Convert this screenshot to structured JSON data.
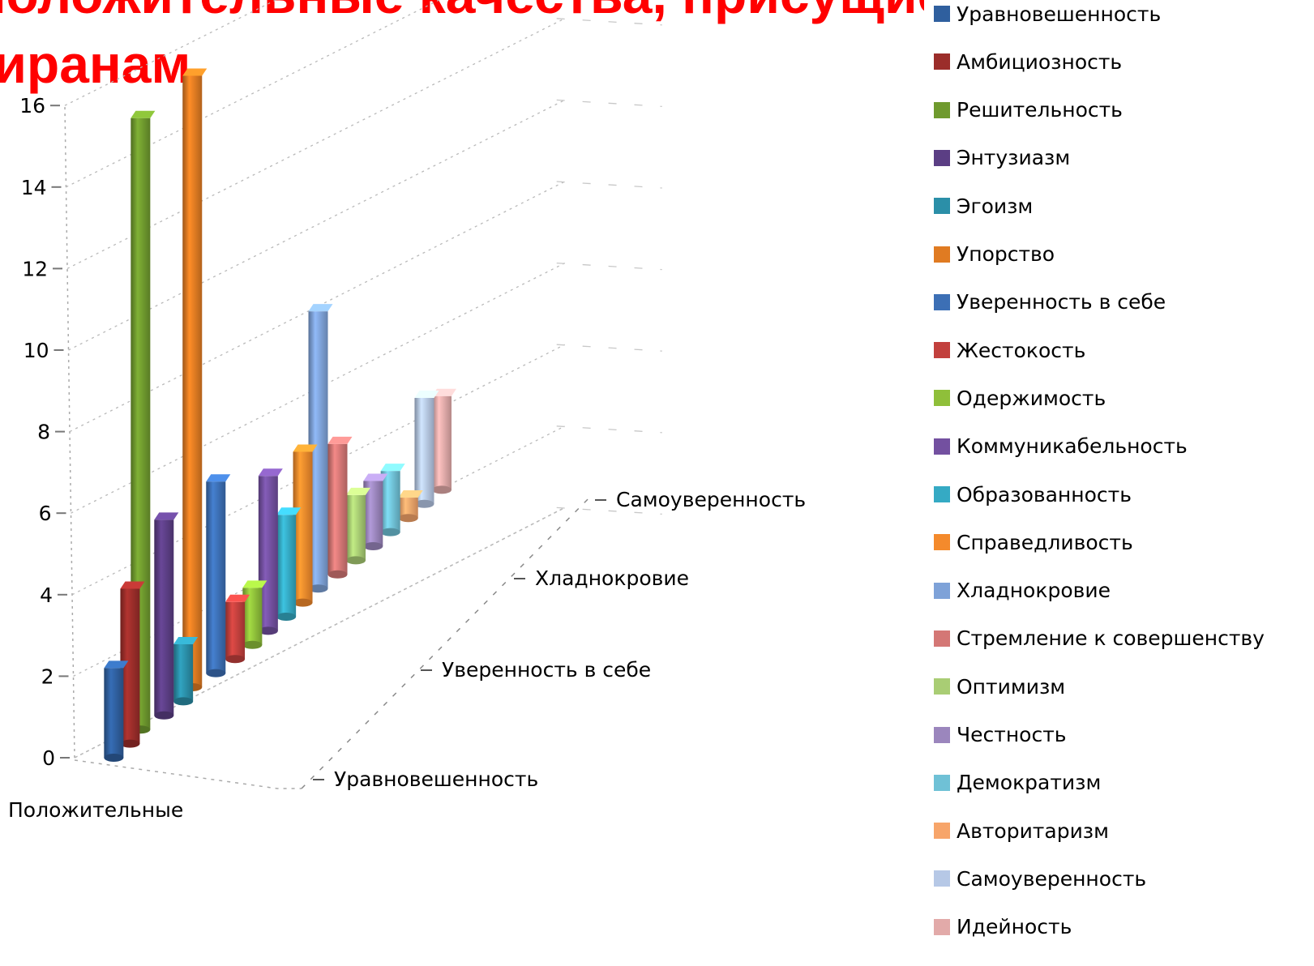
{
  "slide": {
    "title": "Положительные качества, присущие\nтиранам"
  },
  "chart_data": {
    "type": "bar",
    "subtype": "3d-column",
    "title": "",
    "xlabel": "",
    "ylabel": "",
    "ylim": [
      0,
      16
    ],
    "y_ticks": [
      "0",
      "2",
      "4",
      "6",
      "8",
      "10",
      "12",
      "14",
      "16"
    ],
    "categories": [
      "Положительные"
    ],
    "depth_labels": [
      "Уравновешенность",
      "Уверенность в себе",
      "Хладнокровие",
      "Самоуверенность"
    ],
    "grid": true,
    "legend_position": "right",
    "series": [
      {
        "name": "Уравновешенность",
        "value": 2.2,
        "color": "#2f5f9e"
      },
      {
        "name": "Амбициозность",
        "value": 3.8,
        "color": "#9b2d2a"
      },
      {
        "name": "Решительность",
        "value": 15,
        "color": "#6f9a2e"
      },
      {
        "name": "Энтузиазм",
        "value": 4.8,
        "color": "#5b3e84"
      },
      {
        "name": "Эгоизм",
        "value": 1.4,
        "color": "#2b8fa8"
      },
      {
        "name": "Упорство",
        "value": 15,
        "color": "#e07b22"
      },
      {
        "name": "Уверенность в себе",
        "value": 4.7,
        "color": "#3c6fb5"
      },
      {
        "name": "Жестокость",
        "value": 1.4,
        "color": "#c2403d"
      },
      {
        "name": "Одержимость",
        "value": 1.4,
        "color": "#8fbf3a"
      },
      {
        "name": "Коммуникабельность",
        "value": 3.8,
        "color": "#7350a0"
      },
      {
        "name": "Образованность",
        "value": 2.5,
        "color": "#35aac4"
      },
      {
        "name": "Справедливость",
        "value": 3.7,
        "color": "#f48a2c"
      },
      {
        "name": "Хладнокровие",
        "value": 6.8,
        "color": "#7ea2d8"
      },
      {
        "name": "Стремление к совершенству",
        "value": 3.2,
        "color": "#d47775"
      },
      {
        "name": "Оптимизм",
        "value": 1.6,
        "color": "#a9cd74"
      },
      {
        "name": "Честность",
        "value": 1.6,
        "color": "#9b86bd"
      },
      {
        "name": "Демократизм",
        "value": 1.5,
        "color": "#6fc1d6"
      },
      {
        "name": "Авторитаризм",
        "value": 0.5,
        "color": "#f7a56a"
      },
      {
        "name": "Самоуверенность",
        "value": 2.6,
        "color": "#b6c8e6"
      },
      {
        "name": "Идейность",
        "value": 2.3,
        "color": "#e2aaa9"
      }
    ]
  }
}
